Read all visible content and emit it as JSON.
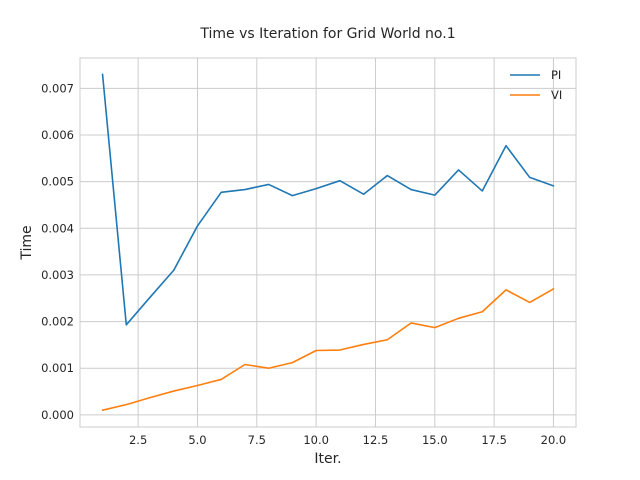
{
  "chart_data": {
    "type": "line",
    "title": "Time vs Iteration for Grid World no.1",
    "xlabel": "Iter.",
    "ylabel": "Time",
    "xlim": [
      0.05,
      20.95
    ],
    "ylim": [
      -0.00026,
      0.00765
    ],
    "xticks": [
      2.5,
      5.0,
      7.5,
      10.0,
      12.5,
      15.0,
      17.5,
      20.0
    ],
    "xtick_labels": [
      "2.5",
      "5.0",
      "7.5",
      "10.0",
      "12.5",
      "15.0",
      "17.5",
      "20.0"
    ],
    "yticks": [
      0.0,
      0.001,
      0.002,
      0.003,
      0.004,
      0.005,
      0.006,
      0.007
    ],
    "ytick_labels": [
      "0.000",
      "0.001",
      "0.002",
      "0.003",
      "0.004",
      "0.005",
      "0.006",
      "0.007"
    ],
    "grid": true,
    "legend": "top-right",
    "x": [
      1,
      2,
      3,
      4,
      5,
      6,
      7,
      8,
      9,
      10,
      11,
      12,
      13,
      14,
      15,
      16,
      17,
      18,
      19,
      20
    ],
    "series": [
      {
        "name": "PI",
        "color": "#1f77b4",
        "values": [
          0.0073,
          0.00193,
          0.00252,
          0.0031,
          0.00405,
          0.00477,
          0.00483,
          0.00494,
          0.0047,
          0.00485,
          0.00502,
          0.00473,
          0.00513,
          0.00483,
          0.00471,
          0.00525,
          0.0048,
          0.00577,
          0.00509,
          0.00491
        ]
      },
      {
        "name": "VI",
        "color": "#ff7f0e",
        "values": [
          0.0001,
          0.00022,
          0.00037,
          0.00051,
          0.00063,
          0.00076,
          0.00108,
          0.001,
          0.00112,
          0.00138,
          0.00139,
          0.00151,
          0.00161,
          0.00197,
          0.00187,
          0.00207,
          0.00221,
          0.00268,
          0.00241,
          0.0027
        ]
      }
    ]
  }
}
